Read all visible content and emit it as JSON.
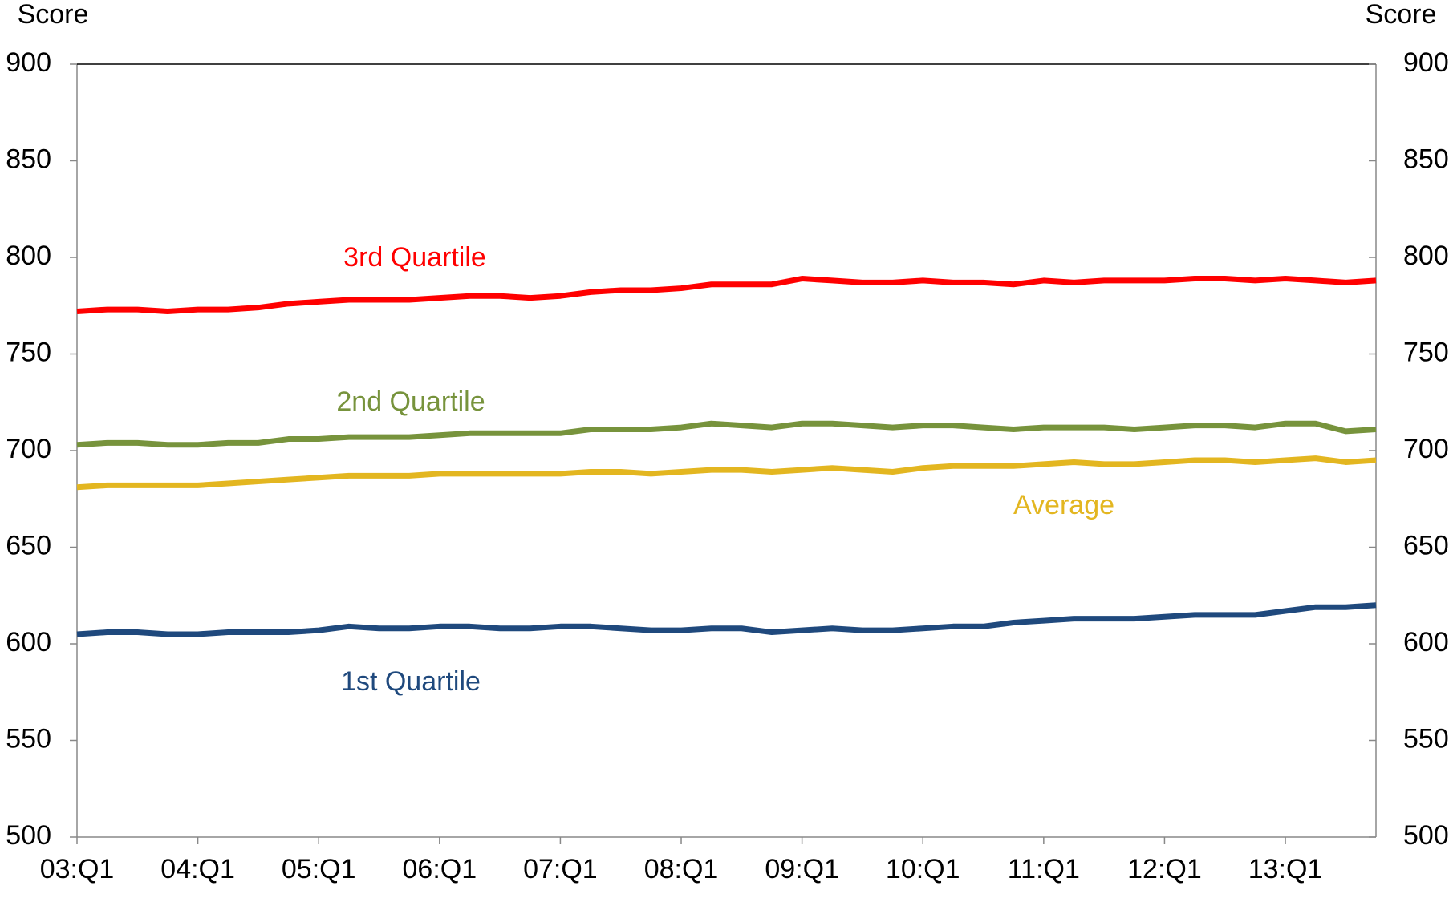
{
  "chart_data": {
    "type": "line",
    "y_label": "Score",
    "y2_label": "Score",
    "categories": [
      "03:Q1",
      null,
      null,
      null,
      "04:Q1",
      null,
      null,
      null,
      "05:Q1",
      null,
      null,
      null,
      "06:Q1",
      null,
      null,
      null,
      "07:Q1",
      null,
      null,
      null,
      "08:Q1",
      null,
      null,
      null,
      "09:Q1",
      null,
      null,
      null,
      "10:Q1",
      null,
      null,
      null,
      "11:Q1",
      null,
      null,
      null,
      "12:Q1",
      null,
      null,
      null,
      "13:Q1",
      null,
      null,
      null
    ],
    "series": [
      {
        "name": "3rd Quartile",
        "color": "#ff0000",
        "values": [
          772,
          773,
          773,
          772,
          773,
          773,
          774,
          776,
          777,
          778,
          778,
          778,
          779,
          780,
          780,
          779,
          780,
          782,
          783,
          783,
          784,
          786,
          786,
          786,
          789,
          788,
          787,
          787,
          788,
          787,
          787,
          786,
          788,
          787,
          788,
          788,
          788,
          789,
          789,
          788,
          789,
          788,
          787,
          788
        ]
      },
      {
        "name": "2nd Quartile",
        "color": "#77933c",
        "values": [
          703,
          704,
          704,
          703,
          703,
          704,
          704,
          706,
          706,
          707,
          707,
          707,
          708,
          709,
          709,
          709,
          709,
          711,
          711,
          711,
          712,
          714,
          713,
          712,
          714,
          714,
          713,
          712,
          713,
          713,
          712,
          711,
          712,
          712,
          712,
          711,
          712,
          713,
          713,
          712,
          714,
          714,
          710,
          711
        ]
      },
      {
        "name": "Average",
        "color": "#e3b620",
        "values": [
          681,
          682,
          682,
          682,
          682,
          683,
          684,
          685,
          686,
          687,
          687,
          687,
          688,
          688,
          688,
          688,
          688,
          689,
          689,
          688,
          689,
          690,
          690,
          689,
          690,
          691,
          690,
          689,
          691,
          692,
          692,
          692,
          693,
          694,
          693,
          693,
          694,
          695,
          695,
          694,
          695,
          696,
          694,
          695
        ]
      },
      {
        "name": "1st Quartile",
        "color": "#1f497d",
        "values": [
          605,
          606,
          606,
          605,
          605,
          606,
          606,
          606,
          607,
          609,
          608,
          608,
          609,
          609,
          608,
          608,
          609,
          609,
          608,
          607,
          607,
          608,
          608,
          606,
          607,
          608,
          607,
          607,
          608,
          609,
          609,
          611,
          612,
          613,
          613,
          613,
          614,
          615,
          615,
          615,
          617,
          619,
          619,
          620
        ]
      }
    ],
    "ylim": [
      500,
      900
    ],
    "yticks": [
      500,
      550,
      600,
      650,
      700,
      750,
      800,
      850,
      900
    ],
    "y2lim": [
      500,
      900
    ],
    "y2ticks": [
      500,
      550,
      600,
      650,
      700,
      750,
      800,
      850,
      900
    ],
    "grid": false
  }
}
